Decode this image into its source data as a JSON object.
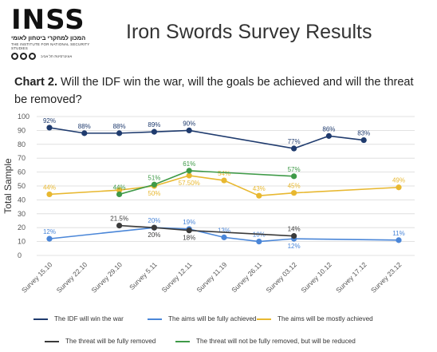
{
  "header": {
    "logo_text": "INSS",
    "logo_hebrew": "המכון למחקרי ביטחון לאומי",
    "logo_english": "THE INSTITUTE FOR NATIONAL SECURITY STUDIES",
    "logo_university": "אוניברסיטת תל אביב",
    "report_title": "Iron Swords Survey Results"
  },
  "chart_heading": {
    "label": "Chart 2.",
    "question": "Will the IDF win the war, will the goals be achieved and will the threat be removed?"
  },
  "colors": {
    "idf_win": "#1f3b6e",
    "fully_achieved": "#4a86d8",
    "mostly_achieved": "#e8b830",
    "threat_removed": "#3a3a3a",
    "threat_reduced": "#3f9a48",
    "grid": "#d9d9d9",
    "axis_text": "#555555"
  },
  "chart_data": {
    "type": "line",
    "ylabel": "Total Sample",
    "xlabel": "",
    "ylim": [
      0,
      100
    ],
    "yticks": [
      0,
      10,
      20,
      30,
      40,
      50,
      60,
      70,
      80,
      90,
      100
    ],
    "grid": true,
    "legend_position": "bottom",
    "categories": [
      "Survey 15.10",
      "Survey 22.10",
      "Survey 29.10",
      "Survey 5.11",
      "Survey 12.11",
      "Survey 11.19",
      "Survey 26.11",
      "Survey 03.12",
      "Survey 10.12",
      "Survey 17.12",
      "Survey 23.12"
    ],
    "series": [
      {
        "name": "The IDF will win the war",
        "color_key": "idf_win",
        "points": [
          [
            0,
            92
          ],
          [
            1,
            88
          ],
          [
            2,
            88
          ],
          [
            3,
            89
          ],
          [
            4,
            90
          ],
          [
            7,
            77
          ],
          [
            8,
            86
          ],
          [
            9,
            83
          ]
        ],
        "labels": [
          {
            "i": 0,
            "text": "92%"
          },
          {
            "i": 1,
            "text": "88%"
          },
          {
            "i": 2,
            "text": "88%"
          },
          {
            "i": 3,
            "text": "89%"
          },
          {
            "i": 4,
            "text": "90%"
          },
          {
            "i": 7,
            "text": "77%"
          },
          {
            "i": 8,
            "text": "86%"
          },
          {
            "i": 9,
            "text": "83%"
          }
        ]
      },
      {
        "name": "The aims will be fully achieved",
        "color_key": "fully_achieved",
        "points": [
          [
            0,
            12
          ],
          [
            3,
            20
          ],
          [
            4,
            19
          ],
          [
            5,
            13
          ],
          [
            6,
            10
          ],
          [
            7,
            12
          ],
          [
            10,
            11
          ]
        ],
        "labels": [
          {
            "i": 0,
            "text": "12%"
          },
          {
            "i": 3,
            "text": "20%"
          },
          {
            "i": 4,
            "text": "19%"
          },
          {
            "i": 5,
            "text": "13%"
          },
          {
            "i": 6,
            "text": "10%"
          },
          {
            "i": 7,
            "text": "12%",
            "below": true
          },
          {
            "i": 10,
            "text": "11%"
          }
        ]
      },
      {
        "name": "The aims will be mostly achieved",
        "color_key": "mostly_achieved",
        "points": [
          [
            0,
            44
          ],
          [
            2,
            47
          ],
          [
            3,
            50
          ],
          [
            4,
            57.5
          ],
          [
            5,
            54
          ],
          [
            6,
            43
          ],
          [
            7,
            45
          ],
          [
            10,
            49
          ]
        ],
        "labels": [
          {
            "i": 0,
            "text": "44%"
          },
          {
            "i": 3,
            "text": "50%",
            "below": true
          },
          {
            "i": 4,
            "text": "57.50%",
            "below": true
          },
          {
            "i": 5,
            "text": "54%"
          },
          {
            "i": 6,
            "text": "43%"
          },
          {
            "i": 7,
            "text": "45%"
          },
          {
            "i": 10,
            "text": "49%"
          }
        ]
      },
      {
        "name": "The threat will be fully removed",
        "color_key": "threat_removed",
        "points": [
          [
            2,
            21.5
          ],
          [
            3,
            20
          ],
          [
            4,
            18
          ],
          [
            7,
            14
          ]
        ],
        "labels": [
          {
            "i": 2,
            "text": "21.5%"
          },
          {
            "i": 3,
            "text": "20%",
            "below": true
          },
          {
            "i": 4,
            "text": "18%",
            "below": true
          },
          {
            "i": 7,
            "text": "14%"
          }
        ]
      },
      {
        "name": "The threat will not be fully removed, but will be reduced",
        "color_key": "threat_reduced",
        "points": [
          [
            2,
            44
          ],
          [
            3,
            51
          ],
          [
            4,
            61
          ],
          [
            7,
            57
          ]
        ],
        "labels": [
          {
            "i": 2,
            "text": "44%"
          },
          {
            "i": 3,
            "text": "51%"
          },
          {
            "i": 4,
            "text": "61%"
          },
          {
            "i": 7,
            "text": "57%"
          }
        ]
      }
    ]
  }
}
